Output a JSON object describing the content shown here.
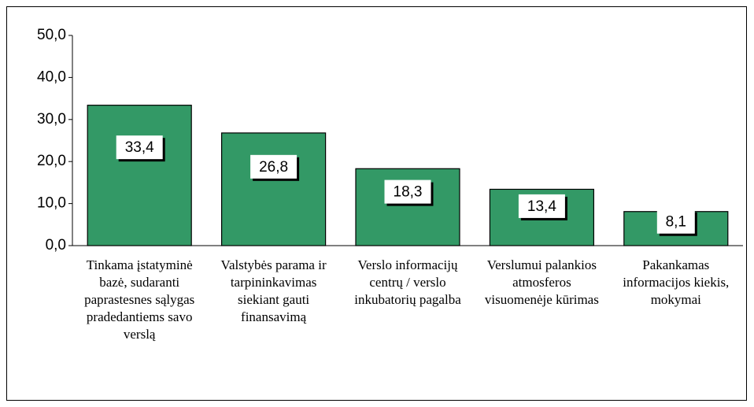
{
  "chart_data": {
    "type": "bar",
    "categories": [
      "Tinkama įstatyminė bazė, sudaranti paprastesnes sąlygas pradedantiems savo verslą",
      "Valstybės parama ir tarpininkavimas siekiant gauti finansavimą",
      "Verslo informacijų centrų / verslo inkubatorių pagalba",
      "Verslumui palankios atmosferos visuomenėje kūrimas",
      "Pakankamas informacijos kiekis, mokymai"
    ],
    "values": [
      33.4,
      26.8,
      18.3,
      13.4,
      8.1
    ],
    "value_labels": [
      "33,4",
      "26,8",
      "18,3",
      "13,4",
      "8,1"
    ],
    "color": "#339966",
    "ylim": [
      0,
      50
    ],
    "yticks": [
      {
        "value": 0,
        "label": "0,0"
      },
      {
        "value": 10,
        "label": "10,0"
      },
      {
        "value": 20,
        "label": "20,0"
      },
      {
        "value": 30,
        "label": "30,0"
      },
      {
        "value": 40,
        "label": "40,0"
      },
      {
        "value": 50,
        "label": "50,0"
      }
    ]
  }
}
